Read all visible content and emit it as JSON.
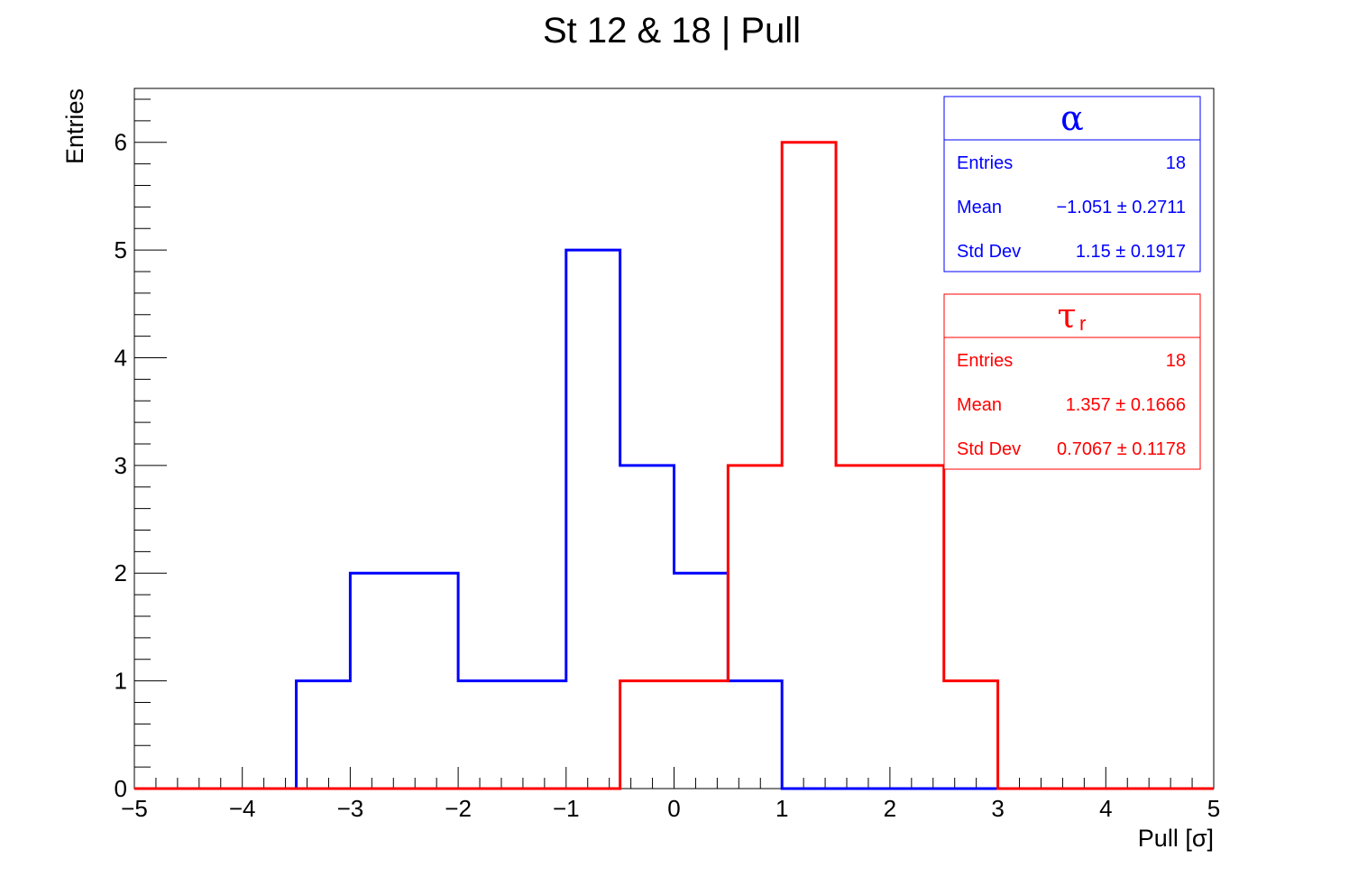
{
  "chart_data": {
    "type": "histogram",
    "title": "St 12 & 18 | Pull",
    "xlabel": "Pull [σ]",
    "ylabel": "Entries",
    "xlim": [
      -5,
      5
    ],
    "ylim": [
      0,
      6.5
    ],
    "bin_width": 0.5,
    "x_ticks": [
      -5,
      -4,
      -3,
      -2,
      -1,
      0,
      1,
      2,
      3,
      4,
      5
    ],
    "x_tick_labels": [
      "−5",
      "−4",
      "−3",
      "−2",
      "−1",
      "0",
      "1",
      "2",
      "3",
      "4",
      "5"
    ],
    "y_ticks": [
      0,
      1,
      2,
      3,
      4,
      5,
      6
    ],
    "y_tick_labels": [
      "0",
      "1",
      "2",
      "3",
      "4",
      "5",
      "6"
    ],
    "series": [
      {
        "name": "α",
        "color": "#0000ff",
        "bin_edges": [
          -5,
          -4.5,
          -4,
          -3.5,
          -3,
          -2.5,
          -2,
          -1.5,
          -1,
          -0.5,
          0,
          0.5,
          1,
          1.5,
          2,
          2.5,
          3,
          3.5,
          4,
          4.5,
          5
        ],
        "counts": [
          0,
          0,
          0,
          1,
          2,
          2,
          1,
          1,
          5,
          3,
          2,
          1,
          0,
          0,
          0,
          0,
          0,
          0,
          0,
          0
        ]
      },
      {
        "name": "τr",
        "color": "#ff0000",
        "bin_edges": [
          -5,
          -4.5,
          -4,
          -3.5,
          -3,
          -2.5,
          -2,
          -1.5,
          -1,
          -0.5,
          0,
          0.5,
          1,
          1.5,
          2,
          2.5,
          3,
          3.5,
          4,
          4.5,
          5
        ],
        "counts": [
          0,
          0,
          0,
          0,
          0,
          0,
          0,
          0,
          0,
          1,
          1,
          3,
          6,
          3,
          3,
          1,
          0,
          0,
          0,
          0
        ]
      }
    ]
  },
  "stats_boxes": [
    {
      "title": "α",
      "subscript": "",
      "color": "#0000ff",
      "rows": [
        {
          "label": "Entries",
          "value": "18"
        },
        {
          "label": "Mean",
          "value": "−1.051 ± 0.2711"
        },
        {
          "label": "Std Dev",
          "value": "1.15 ± 0.1917"
        }
      ]
    },
    {
      "title": "τ",
      "subscript": "r",
      "color": "#ff0000",
      "rows": [
        {
          "label": "Entries",
          "value": "18"
        },
        {
          "label": "Mean",
          "value": "1.357 ± 0.1666"
        },
        {
          "label": "Std Dev",
          "value": "0.7067 ± 0.1178"
        }
      ]
    }
  ]
}
